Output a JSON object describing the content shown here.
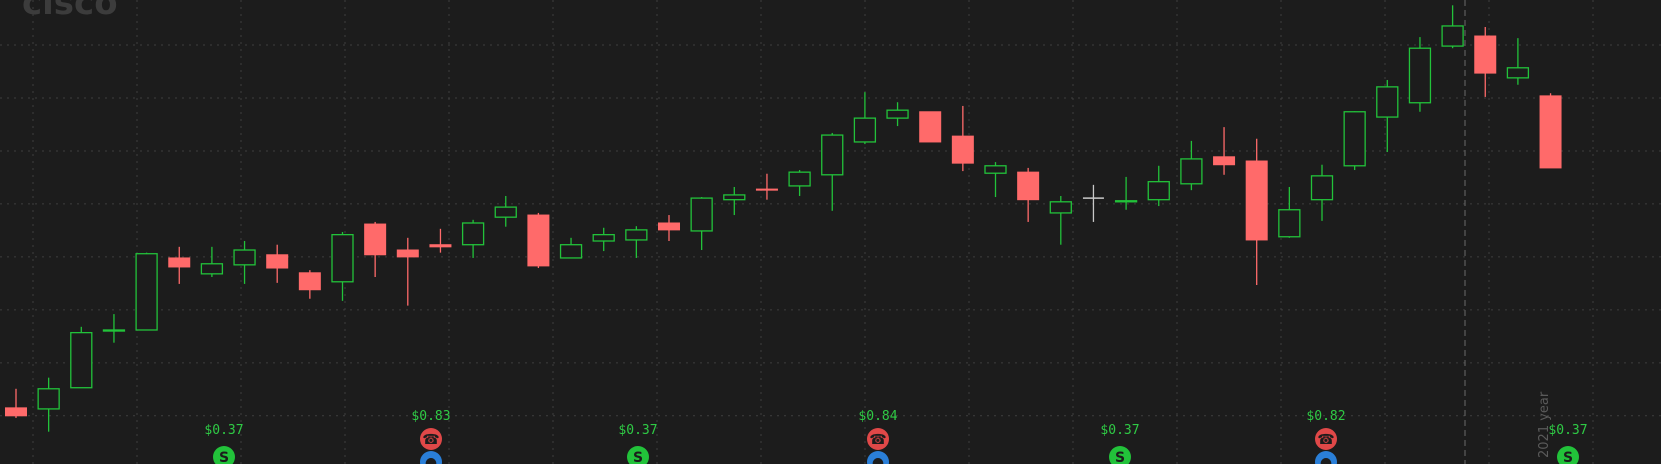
{
  "chart_data": {
    "type": "candlestick",
    "watermark": "cisco",
    "period_label": "2021 year",
    "up_color": "#22c23a",
    "down_color": "#ff6a6a",
    "flat_color": "#c8c8c8",
    "grid": true,
    "ylim": [
      0.09,
      8.85
    ],
    "yticks": [
      1,
      2,
      3,
      4,
      5,
      6,
      7,
      8
    ],
    "open": [
      1.15,
      1.13,
      1.53,
      2.6,
      2.62,
      3.98,
      3.68,
      3.85,
      4.04,
      3.7,
      3.53,
      4.62,
      4.13,
      4.23,
      4.23,
      4.75,
      4.79,
      3.98,
      4.3,
      4.32,
      4.64,
      4.49,
      5.08,
      5.28,
      5.34,
      5.55,
      6.17,
      6.62,
      6.74,
      6.28,
      5.58,
      5.6,
      4.83,
      5.11,
      5.04,
      5.08,
      5.38,
      5.89,
      5.81,
      4.38,
      5.08,
      5.72,
      6.64,
      6.91,
      7.98,
      8.17,
      7.38,
      7.04
    ],
    "high": [
      1.51,
      1.72,
      2.68,
      2.92,
      4.08,
      4.19,
      4.19,
      4.3,
      4.23,
      3.75,
      4.47,
      4.66,
      4.36,
      4.53,
      4.7,
      5.15,
      4.83,
      4.36,
      4.55,
      4.58,
      4.79,
      5.13,
      5.32,
      5.57,
      5.64,
      6.34,
      7.11,
      6.92,
      6.74,
      6.85,
      5.79,
      5.68,
      5.15,
      5.36,
      5.51,
      5.72,
      6.19,
      6.45,
      6.23,
      5.32,
      5.74,
      6.75,
      7.34,
      8.15,
      8.75,
      8.34,
      8.13,
      7.09
    ],
    "low": [
      0.96,
      0.7,
      1.53,
      2.38,
      2.62,
      3.49,
      3.62,
      3.49,
      3.51,
      3.21,
      3.17,
      3.62,
      3.08,
      4.08,
      3.98,
      4.57,
      3.79,
      3.98,
      4.11,
      3.98,
      4.3,
      4.13,
      4.79,
      5.08,
      5.15,
      4.87,
      6.13,
      6.47,
      6.17,
      5.62,
      5.13,
      4.66,
      4.23,
      4.66,
      4.89,
      4.96,
      5.26,
      5.55,
      3.47,
      4.36,
      4.68,
      5.64,
      5.98,
      6.74,
      7.94,
      7.02,
      7.25,
      5.68
    ],
    "close": [
      1.0,
      1.51,
      2.57,
      2.62,
      4.06,
      3.81,
      3.87,
      4.13,
      3.79,
      3.38,
      4.42,
      4.04,
      4.0,
      4.19,
      4.64,
      4.94,
      3.83,
      4.23,
      4.42,
      4.51,
      4.51,
      5.11,
      5.17,
      5.26,
      5.6,
      6.3,
      6.62,
      6.77,
      6.17,
      5.77,
      5.72,
      5.08,
      5.04,
      5.11,
      5.06,
      5.42,
      5.85,
      5.74,
      4.32,
      4.89,
      5.53,
      6.74,
      7.21,
      7.94,
      8.36,
      7.47,
      7.57,
      5.68
    ],
    "dividends": [
      "$0.37",
      "$0.37",
      "$0.37",
      "$0.37"
    ],
    "earnings": [
      "$0.83",
      "$0.84",
      "$0.82"
    ]
  }
}
